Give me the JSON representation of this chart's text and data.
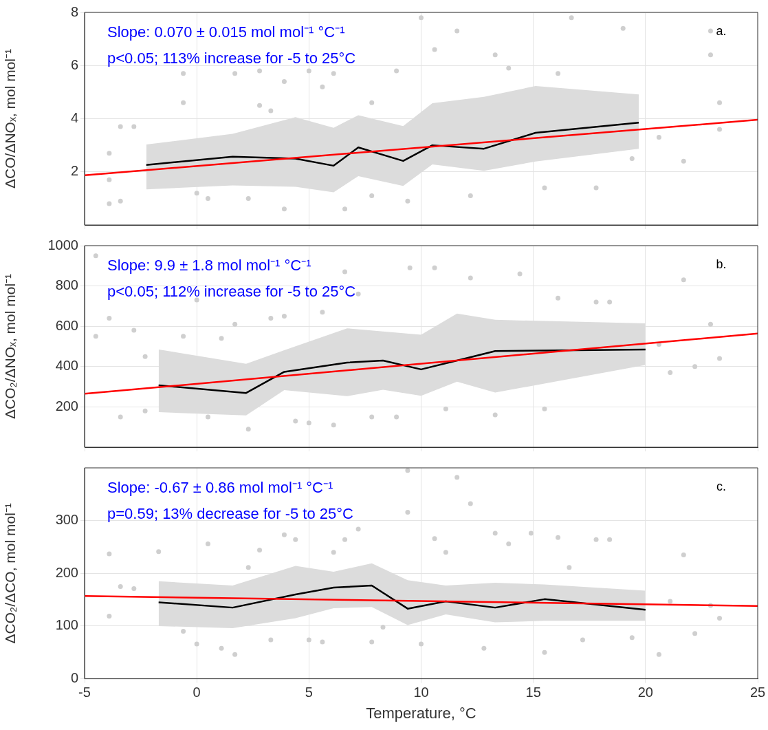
{
  "chart_data": [
    {
      "type": "line",
      "ylabel": "ΔCO/ΔNOₓ, mol mol⁻¹",
      "annotations": [
        "Slope: 0.070 ± 0.015 mol mol⁻¹ °C⁻¹",
        "p<0.05; 113% increase for -5 to 25°C",
        "a."
      ],
      "xlim": [
        -5,
        25
      ],
      "xticks": [
        -5,
        0,
        5,
        10,
        15,
        20,
        25
      ],
      "ylim": [
        0,
        8
      ],
      "yticks": [
        2,
        4,
        6,
        8
      ],
      "tick_labels": "y",
      "grid": true,
      "legend": false,
      "series": [
        {
          "type": "scatter",
          "marker": "circle",
          "color": "#cfcfcf",
          "x": [
            -3.9,
            -3.9,
            -3.9,
            -3.4,
            -3.4,
            -2.8,
            -0.6,
            -0.6,
            0,
            0.5,
            1.7,
            2.3,
            2.8,
            2.8,
            3.3,
            3.9,
            3.9,
            5,
            5.6,
            6.1,
            6.6,
            7.8,
            7.8,
            8.9,
            9.4,
            10,
            10.6,
            11.6,
            12.2,
            13.3,
            13.9,
            15.5,
            16.1,
            16.7,
            17.8,
            19,
            19.4,
            20.6,
            21.7,
            22.9,
            22.9,
            23.3,
            23.3
          ],
          "values": [
            2.7,
            1.7,
            0.8,
            3.7,
            0.9,
            3.7,
            5.7,
            4.6,
            1.2,
            1,
            5.7,
            1,
            5.8,
            4.5,
            4.3,
            5.4,
            0.6,
            5.8,
            5.2,
            5.7,
            0.6,
            4.6,
            1.1,
            5.8,
            0.9,
            7.8,
            6.6,
            7.3,
            1.1,
            6.4,
            5.9,
            1.4,
            5.7,
            7.8,
            1.4,
            7.4,
            2.5,
            3.3,
            2.4,
            7.3,
            6.4,
            4.6,
            3.6
          ]
        },
        {
          "color": "#000000",
          "x": [
            -2.25,
            1.6,
            4.4,
            6.1,
            7.2,
            9.2,
            10.5,
            12.8,
            15.1,
            19.7
          ],
          "values": [
            2.26,
            2.57,
            2.5,
            2.23,
            2.92,
            2.41,
            3,
            2.87,
            3.47,
            3.85
          ],
          "lower": [
            1.34,
            1.49,
            1.44,
            1.23,
            1.84,
            1.47,
            2.28,
            2.04,
            2.39,
            2.87
          ],
          "upper": [
            3.03,
            3.43,
            4.06,
            3.66,
            4.13,
            3.72,
            4.58,
            4.82,
            5.23,
            4.91
          ]
        },
        {
          "color": "#ff0000",
          "x": [
            -5,
            25
          ],
          "values": [
            1.87,
            3.96
          ]
        }
      ]
    },
    {
      "type": "line",
      "ylabel": "ΔCO₂/ΔNOₓ, mol mol⁻¹",
      "annotations": [
        "Slope: 9.9 ± 1.8 mol mol⁻¹ °C⁻¹",
        "p<0.05; 112% increase for -5 to 25°C",
        "b."
      ],
      "xlim": [
        -5,
        25
      ],
      "xticks": [
        -5,
        0,
        5,
        10,
        15,
        20,
        25
      ],
      "ylim": [
        0,
        1000
      ],
      "yticks": [
        200,
        400,
        600,
        800,
        1000
      ],
      "tick_labels": "y",
      "grid": true,
      "legend": false,
      "series": [
        {
          "type": "scatter",
          "marker": "circle",
          "color": "#cfcfcf",
          "x": [
            -4.5,
            -4.5,
            -3.9,
            -3.4,
            -2.8,
            -2.3,
            -2.3,
            -0.6,
            0,
            0.5,
            1.1,
            1.7,
            2.3,
            3.3,
            3.9,
            4.4,
            5,
            5.6,
            6.1,
            6.6,
            7.2,
            7.8,
            8.9,
            9.5,
            10.6,
            11.1,
            12.2,
            13.3,
            14.4,
            15.5,
            16.1,
            17.8,
            18.4,
            20.6,
            21.1,
            21.7,
            22.2,
            22.9,
            23.3
          ],
          "values": [
            950,
            550,
            640,
            150,
            580,
            450,
            180,
            550,
            730,
            150,
            540,
            610,
            90,
            640,
            650,
            130,
            120,
            670,
            110,
            870,
            760,
            150,
            150,
            890,
            890,
            190,
            840,
            160,
            860,
            190,
            740,
            720,
            720,
            510,
            370,
            830,
            400,
            610,
            440
          ]
        },
        {
          "color": "#000000",
          "x": [
            -1.7,
            2.2,
            3.9,
            6.7,
            8.3,
            10,
            11.6,
            13.3,
            20
          ],
          "values": [
            307,
            269,
            374,
            420,
            430,
            386,
            430,
            477,
            485
          ],
          "lower": [
            174,
            158,
            283,
            253,
            285,
            255,
            325,
            271,
            408
          ],
          "upper": [
            485,
            414,
            481,
            590,
            574,
            558,
            663,
            632,
            614
          ]
        },
        {
          "color": "#ff0000",
          "x": [
            -5,
            25
          ],
          "values": [
            265,
            564
          ]
        }
      ]
    },
    {
      "type": "line",
      "xlabel": "Temperature, °C",
      "ylabel": "ΔCO₂/ΔCO, mol mol⁻¹",
      "annotations": [
        "Slope: -0.67 ± 0.86 mol mol⁻¹ °C⁻¹",
        "p=0.59; 13% decrease for -5 to 25°C",
        "c."
      ],
      "xlim": [
        -5,
        25
      ],
      "xticks": [
        -5,
        0,
        5,
        10,
        15,
        20,
        25
      ],
      "ylim": [
        0,
        400
      ],
      "yticks": [
        0,
        100,
        200,
        300
      ],
      "grid": true,
      "legend": false,
      "series": [
        {
          "type": "scatter",
          "marker": "circle",
          "color": "#cfcfcf",
          "x": [
            -3.9,
            -3.9,
            -3.4,
            -2.8,
            -1.7,
            -0.6,
            0,
            0.5,
            1.1,
            1.7,
            2.3,
            2.8,
            3.3,
            3.9,
            4.4,
            5,
            5.6,
            6.1,
            6.6,
            7.2,
            7.8,
            8.3,
            9.4,
            9.4,
            10,
            10.6,
            11.1,
            11.6,
            12.2,
            12.8,
            13.3,
            13.9,
            14.9,
            15.5,
            16.1,
            16.6,
            17.2,
            17.8,
            18.4,
            19.4,
            20.6,
            21.1,
            21.7,
            22.2,
            22.9,
            23.3
          ],
          "values": [
            237,
            119,
            175,
            171,
            241,
            90,
            66,
            256,
            58,
            46,
            211,
            244,
            74,
            273,
            264,
            74,
            70,
            240,
            264,
            284,
            70,
            98,
            395,
            316,
            66,
            266,
            240,
            382,
            332,
            58,
            276,
            256,
            276,
            50,
            268,
            211,
            74,
            264,
            264,
            78,
            46,
            147,
            235,
            86,
            139,
            115
          ]
        },
        {
          "color": "#000000",
          "x": [
            -1.7,
            1.6,
            4.4,
            6.1,
            7.8,
            9.4,
            11.1,
            13.3,
            15.5,
            20
          ],
          "values": [
            145,
            135,
            160,
            173,
            177,
            133,
            147,
            135,
            151,
            131
          ],
          "lower": [
            100,
            96,
            115,
            134,
            136,
            102,
            122,
            107,
            110,
            110
          ],
          "upper": [
            185,
            177,
            214,
            203,
            219,
            187,
            177,
            182,
            179,
            167
          ]
        },
        {
          "color": "#ff0000",
          "x": [
            -5,
            25
          ],
          "values": [
            157,
            138
          ]
        }
      ]
    }
  ]
}
